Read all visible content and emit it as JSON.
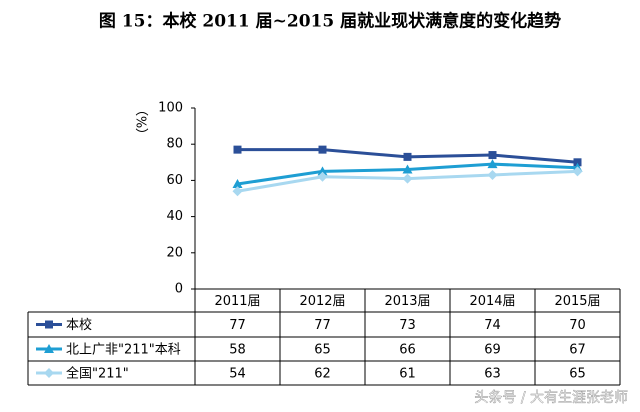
{
  "chart_data": {
    "type": "line",
    "title": "图 15：本校 2011 届~2015 届就业现状满意度的变化趋势",
    "y_label": "（%）",
    "categories": [
      "2011届",
      "2012届",
      "2013届",
      "2014届",
      "2015届"
    ],
    "series": [
      {
        "name": "本校",
        "color": "#2b4f98",
        "marker": "square",
        "values": [
          77,
          77,
          73,
          74,
          70
        ]
      },
      {
        "name": "北上广非\"211\"本科",
        "color": "#1e9ed3",
        "marker": "triangle",
        "values": [
          58,
          65,
          66,
          69,
          67
        ]
      },
      {
        "name": "全国\"211\"",
        "color": "#a8d8f0",
        "marker": "diamond",
        "values": [
          54,
          62,
          61,
          63,
          65
        ]
      }
    ],
    "ylim": [
      0,
      100
    ],
    "yticks": [
      0,
      20,
      40,
      60,
      80,
      100
    ],
    "grid": false,
    "watermark": "头条号 / 大有生涯张老师"
  }
}
